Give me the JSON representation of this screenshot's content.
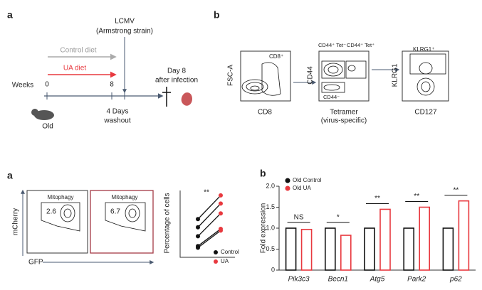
{
  "panels": {
    "top_a": {
      "label": "a",
      "infection": "LCMV",
      "strain": "(Armstrong strain)",
      "control_diet": "Control diet",
      "ua_diet": "UA diet",
      "weeks": "Weeks",
      "week_start": "0",
      "week_end": "8",
      "day": "Day 8",
      "after": "after infection",
      "washout_days": "4 Days",
      "washout": "washout",
      "mouse": "Old"
    },
    "top_b": {
      "label": "b",
      "plot1": {
        "y_label": "FSC-A",
        "x_label": "CD8",
        "gate": "CD8⁺"
      },
      "plot2": {
        "y_label": "CD44",
        "x_label": "Tetramer",
        "x_sub": "(virus-specific)",
        "gate1": "CD44⁺ Tet⁻",
        "gate2": "CD44⁺ Tet⁺",
        "gate3": "CD44⁻"
      },
      "plot3": {
        "y_label": "KLRG1",
        "x_label": "CD127",
        "gate": "KLRG1⁺"
      }
    },
    "bottom_a": {
      "label": "a",
      "y_label": "mCherry",
      "x_label": "GFP",
      "plot1": {
        "gate": "Mitophagy",
        "value": 2.6
      },
      "plot2": {
        "gate": "Mitophagy",
        "value": 6.7
      }
    },
    "bottom_b": {
      "label": "b"
    }
  },
  "chart_data": [
    {
      "type": "paired",
      "ylabel": "Percentage of cells",
      "significance": "**",
      "ylim": [
        0,
        8
      ],
      "series": [
        {
          "name": "Control",
          "color": "#111111",
          "values": [
            4.5,
            3.5,
            2.4,
            1.2,
            1.0
          ]
        },
        {
          "name": "UA",
          "color": "#e8393f",
          "values": [
            7.4,
            6.4,
            5.2,
            3.3,
            3.1
          ]
        }
      ]
    },
    {
      "type": "bar",
      "ylabel": "Fold expression",
      "categories": [
        "Pik3c3",
        "Becn1",
        "Atg5",
        "Park2",
        "p62"
      ],
      "significance": [
        "NS",
        "*",
        "**",
        "**",
        "**"
      ],
      "ylim": [
        0,
        2
      ],
      "yticks": [
        0,
        0.5,
        {
          "value": 1,
          "label": "1.0"
        },
        {
          "value": 1.5,
          "label": "1.5"
        },
        {
          "value": 2,
          "label": "2.0"
        }
      ],
      "series": [
        {
          "name": "Old Control",
          "color": "#111111",
          "values": [
            1,
            1,
            1,
            1,
            1
          ]
        },
        {
          "name": "Old UA",
          "color": "#e8393f",
          "values": [
            0.97,
            0.83,
            1.45,
            1.5,
            1.65
          ]
        }
      ]
    }
  ]
}
